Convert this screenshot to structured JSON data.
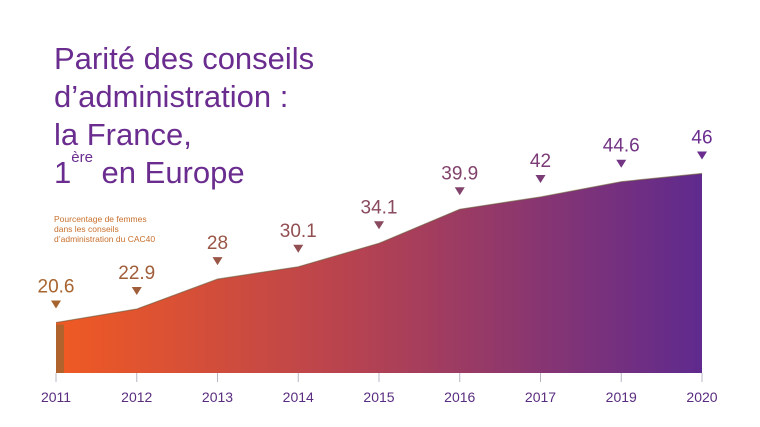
{
  "title": {
    "line1": "Parité des conseils",
    "line2": "d’administration :",
    "line3": "la France,",
    "line4_number": "1",
    "line4_sup": "ère",
    "line4_rest": " en Europe"
  },
  "note": "Pourcentage de femmes dans les conseils d’administration du CAC40",
  "colors": {
    "title": "#6a2d8f",
    "note": "#c8702e",
    "gradient_start": "#f05a23",
    "gradient_end": "#5f2a8e",
    "axis_labels": "#5a2c80"
  },
  "chart_data": {
    "type": "area",
    "categories": [
      "2011",
      "2012",
      "2013",
      "2014",
      "2015",
      "2016",
      "2017",
      "2019",
      "2020"
    ],
    "values": [
      20.6,
      22.9,
      28,
      30.1,
      34.1,
      39.9,
      42,
      44.6,
      46
    ],
    "data_labels": [
      "20.6",
      "22.9",
      "28",
      "30.1",
      "34.1",
      "39.9",
      "42",
      "44.6",
      "46"
    ],
    "label_marker": "down-triangle",
    "xlabel": "",
    "ylabel": "",
    "ylim": [
      12,
      50
    ],
    "grid": false,
    "legend": "none"
  }
}
